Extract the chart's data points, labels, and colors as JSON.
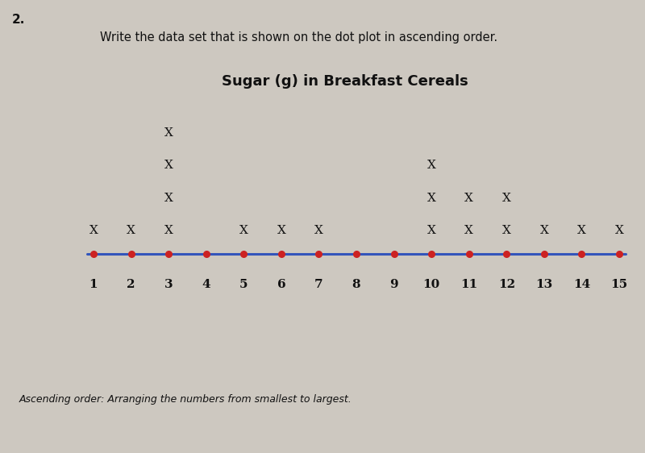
{
  "title": "Sugar (g) in Breakfast Cereals",
  "question_text": "2.",
  "instruction": "Write the data set that is shown on the dot plot in ascending order.",
  "footnote": "Ascending order: Arranging the numbers from smallest to largest.",
  "x_min": 1,
  "x_max": 15,
  "dot_counts": {
    "1": 1,
    "2": 1,
    "3": 4,
    "4": 0,
    "5": 1,
    "6": 1,
    "7": 1,
    "8": 0,
    "9": 0,
    "10": 3,
    "11": 2,
    "12": 2,
    "13": 1,
    "14": 1,
    "15": 1
  },
  "line_color": "#3355bb",
  "dot_color": "#cc2222",
  "marker_color": "#111111",
  "bg_color": "#cdc8c0",
  "title_fontsize": 13,
  "label_fontsize": 11,
  "marker_fontsize": 11,
  "question_fontsize": 11,
  "footnote_fontsize": 9
}
